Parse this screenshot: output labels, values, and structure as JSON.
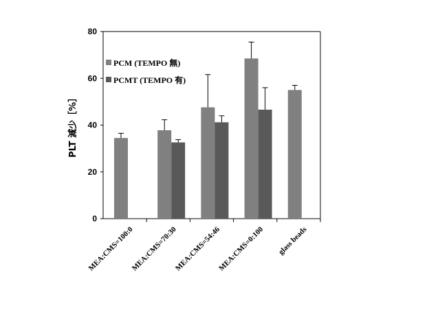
{
  "chart_data": {
    "type": "bar",
    "title": "",
    "xlabel": "",
    "ylabel": "PLT 減少［%］",
    "ylim": [
      0,
      80
    ],
    "yticks": [
      0,
      20,
      40,
      60,
      80
    ],
    "categories": [
      "MEA:CMS=100:0",
      "MEA:CMS=70:30",
      "MEA:CMS=54:46",
      "MEA:CMS=0:100",
      "glass beads"
    ],
    "series": [
      {
        "name": "PCM (TEMPO 無)",
        "color": "#808080",
        "values": [
          34.5,
          37.8,
          47.6,
          68.5,
          55.0
        ],
        "errors": [
          2.0,
          4.5,
          14.0,
          7.0,
          2.0
        ]
      },
      {
        "name": "PCMT (TEMPO 有)",
        "color": "#595959",
        "values": [
          null,
          32.6,
          41.2,
          46.6,
          null
        ],
        "errors": [
          null,
          1.2,
          2.8,
          9.4,
          null
        ]
      }
    ],
    "legend_position": "top-left",
    "grid": false
  }
}
